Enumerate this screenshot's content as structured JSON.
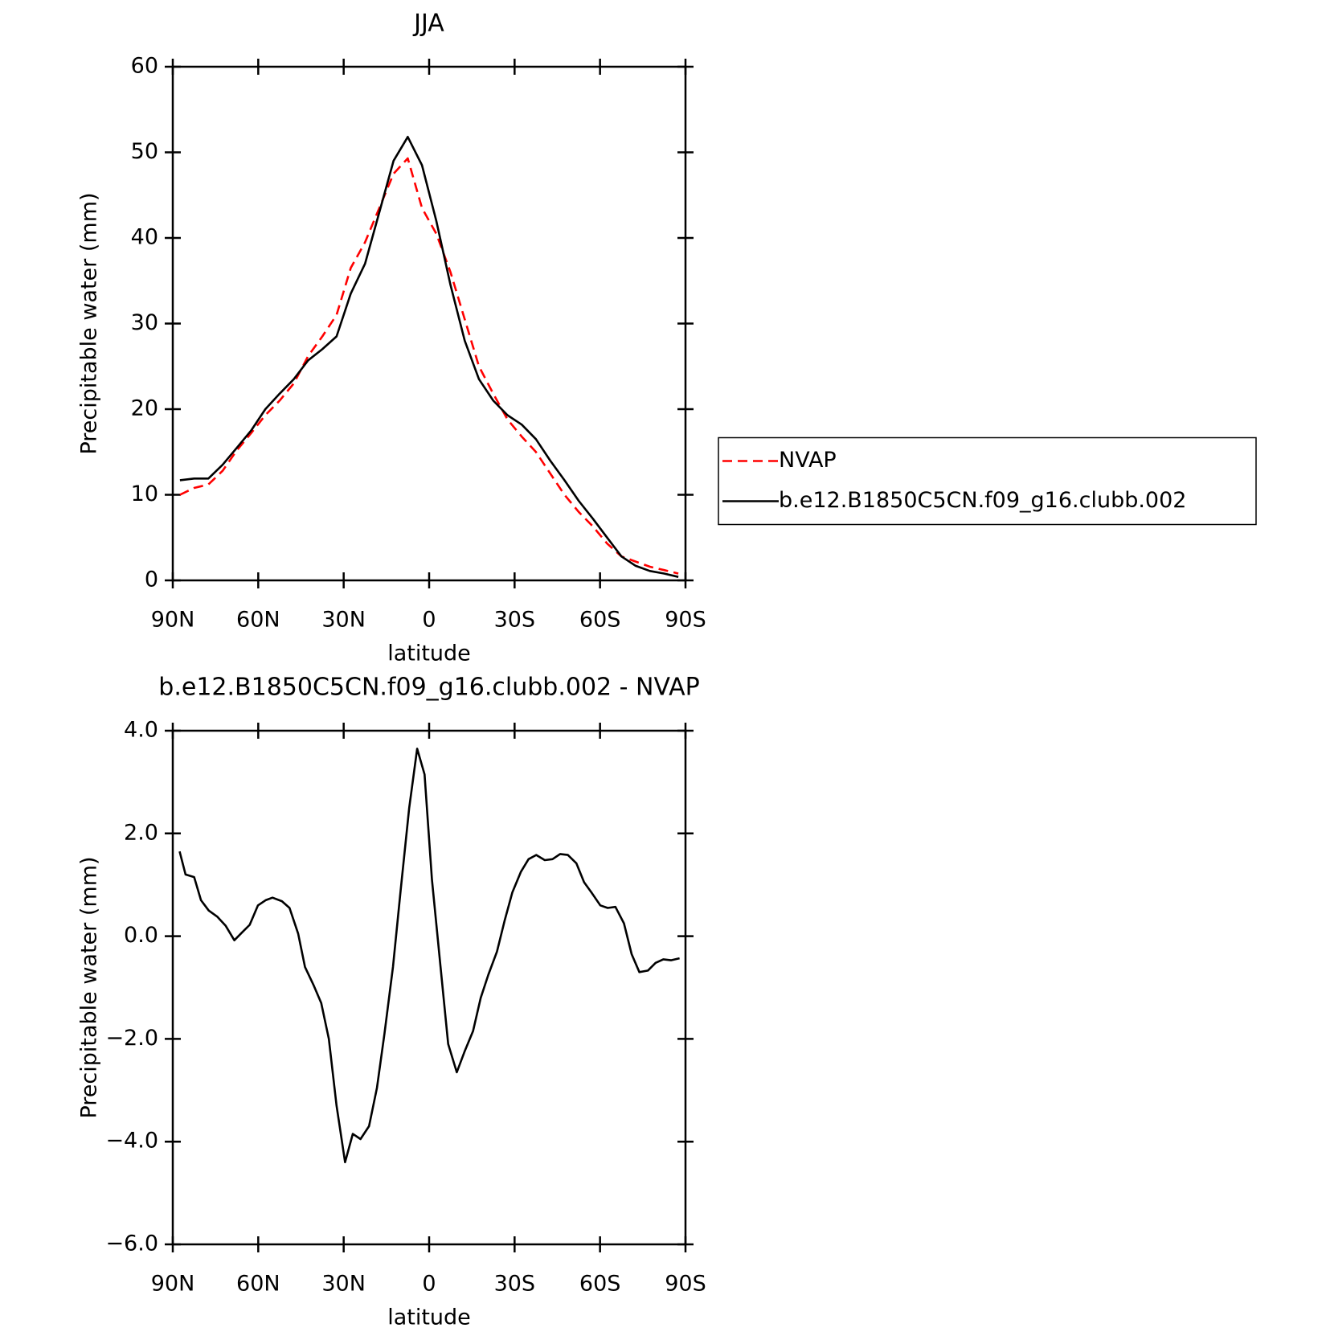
{
  "chart_data": [
    {
      "type": "line",
      "title": "JJA",
      "xlabel": "latitude",
      "ylabel": "Precipitable water (mm)",
      "x": [
        87.5,
        82.5,
        77.5,
        72.5,
        67.5,
        62.5,
        57.5,
        52.5,
        47.5,
        42.5,
        37.5,
        32.5,
        27.5,
        22.5,
        17.5,
        12.5,
        7.5,
        2.5,
        -2.5,
        -7.5,
        -12.5,
        -17.5,
        -22.5,
        -27.5,
        -32.5,
        -37.5,
        -42.5,
        -47.5,
        -52.5,
        -57.5,
        -62.5,
        -67.5,
        -72.5,
        -77.5,
        -82.5,
        -87.5
      ],
      "series": [
        {
          "name": "NVAP",
          "color": "#ff0000",
          "dashed": true,
          "values": [
            10.0,
            10.8,
            11.2,
            12.8,
            15.2,
            17.2,
            19.3,
            21.0,
            23.0,
            26.2,
            28.5,
            31.0,
            36.5,
            39.5,
            43.5,
            47.5,
            49.3,
            43.5,
            40.5,
            36.0,
            30.5,
            25.0,
            21.8,
            18.8,
            16.8,
            15.0,
            12.5,
            10.0,
            8.0,
            6.3,
            4.3,
            2.8,
            2.2,
            1.6,
            1.2,
            0.8
          ]
        },
        {
          "name": "b.e12.B1850C5CN.f09_g16.clubb.002",
          "color": "#000000",
          "dashed": false,
          "values": [
            11.7,
            11.9,
            11.9,
            13.5,
            15.5,
            17.5,
            20.0,
            21.8,
            23.5,
            25.7,
            27.0,
            28.5,
            33.5,
            37.0,
            43.0,
            49.0,
            51.8,
            48.5,
            42.0,
            34.5,
            28.0,
            23.5,
            21.0,
            19.3,
            18.2,
            16.5,
            14.0,
            11.7,
            9.3,
            7.2,
            5.0,
            2.8,
            1.7,
            1.1,
            0.8,
            0.4
          ]
        }
      ],
      "xlim": [
        90,
        -90
      ],
      "xticks": [
        {
          "value": 90,
          "label": "90N"
        },
        {
          "value": 60,
          "label": "60N"
        },
        {
          "value": 30,
          "label": "30N"
        },
        0,
        {
          "value": -30,
          "label": "30S"
        },
        {
          "value": -60,
          "label": "60S"
        },
        {
          "value": -90,
          "label": "90S"
        }
      ],
      "ylim": [
        0,
        60
      ],
      "yticks": [
        0,
        10,
        20,
        30,
        40,
        50,
        60
      ],
      "legend": "right"
    },
    {
      "type": "line",
      "title": "b.e12.B1850C5CN.f09_g16.clubb.002 - NVAP",
      "xlabel": "latitude",
      "ylabel": "Precipitable water (mm)",
      "x": [
        87.6,
        85.5,
        82.5,
        80.1,
        77.4,
        74.4,
        71.4,
        68.4,
        65.7,
        63.0,
        60.1,
        57.4,
        55.0,
        51.7,
        49.0,
        46.0,
        43.6,
        40.6,
        37.9,
        35.2,
        32.5,
        29.5,
        26.8,
        24.1,
        21.1,
        18.3,
        15.7,
        12.7,
        10.0,
        7.0,
        4.2,
        1.6,
        -1.0,
        -4.0,
        -6.7,
        -9.7,
        -12.4,
        -15.4,
        -18.1,
        -20.8,
        -23.8,
        -26.5,
        -29.2,
        -32.2,
        -34.9,
        -37.6,
        -40.6,
        -43.3,
        -46.0,
        -48.7,
        -51.7,
        -54.4,
        -57.0,
        -60.1,
        -62.7,
        -65.4,
        -68.4,
        -71.1,
        -73.8,
        -76.8,
        -79.5,
        -82.2,
        -84.9,
        -87.9
      ],
      "series": [
        {
          "color": "#000000",
          "dashed": false,
          "values": [
            1.65,
            1.2,
            1.15,
            0.7,
            0.5,
            0.38,
            0.2,
            -0.08,
            0.07,
            0.22,
            0.6,
            0.7,
            0.75,
            0.68,
            0.55,
            0.05,
            -0.6,
            -0.95,
            -1.3,
            -2.0,
            -3.3,
            -4.4,
            -3.85,
            -3.95,
            -3.7,
            -2.95,
            -1.9,
            -0.6,
            0.9,
            2.5,
            3.65,
            3.15,
            1.1,
            -0.6,
            -2.1,
            -2.65,
            -2.25,
            -1.85,
            -1.2,
            -0.75,
            -0.3,
            0.3,
            0.85,
            1.25,
            1.5,
            1.58,
            1.48,
            1.5,
            1.6,
            1.58,
            1.42,
            1.05,
            0.85,
            0.6,
            0.55,
            0.57,
            0.25,
            -0.35,
            -0.7,
            -0.67,
            -0.52,
            -0.45,
            -0.47,
            -0.43
          ]
        }
      ],
      "xlim": [
        90,
        -90
      ],
      "xticks": [
        {
          "value": 90,
          "label": "90N"
        },
        {
          "value": 60,
          "label": "60N"
        },
        {
          "value": 30,
          "label": "30N"
        },
        0,
        {
          "value": -30,
          "label": "30S"
        },
        {
          "value": -60,
          "label": "60S"
        },
        {
          "value": -90,
          "label": "90S"
        }
      ],
      "ylim": [
        -6,
        4
      ],
      "yticks": [
        {
          "value": -6,
          "label": "−6.0"
        },
        {
          "value": -4,
          "label": "−4.0"
        },
        {
          "value": -2,
          "label": "−2.0"
        },
        {
          "value": 0,
          "label": "0.0"
        },
        {
          "value": 2,
          "label": "2.0"
        },
        {
          "value": 4,
          "label": "4.0"
        }
      ]
    }
  ]
}
